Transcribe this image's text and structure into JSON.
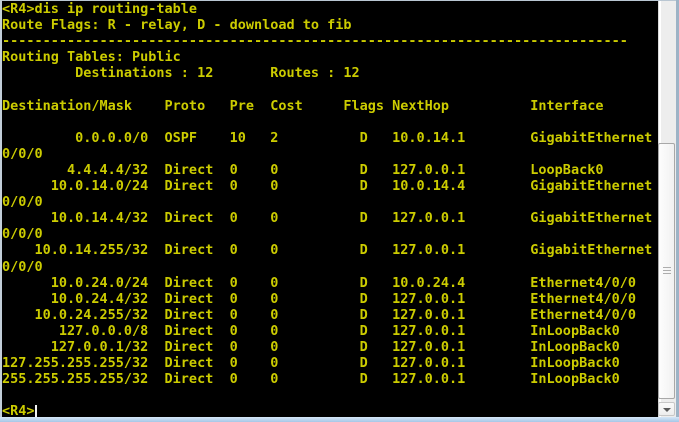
{
  "terminal": {
    "prompt_command_line": "<R4>dis ip routing-table",
    "route_flags_line": "Route Flags: R - relay, D - download to fib",
    "separator": {
      "char": "-",
      "count": 77
    },
    "routing_tables_line": "Routing Tables: Public",
    "summary": {
      "destinations_label": "Destinations",
      "destinations_count": 12,
      "routes_label": "Routes",
      "routes_count": 12
    },
    "table": {
      "columns": [
        "Destination/Mask",
        "Proto",
        "Pre",
        "Cost",
        "Flags",
        "NextHop",
        "Interface"
      ],
      "rows": [
        {
          "destination_mask": "0.0.0.0/0",
          "proto": "OSPF",
          "pre": 10,
          "cost": 2,
          "flags": "D",
          "nexthop": "10.0.14.1",
          "interface": "GigabitEthernet0/0/0"
        },
        {
          "destination_mask": "4.4.4.4/32",
          "proto": "Direct",
          "pre": 0,
          "cost": 0,
          "flags": "D",
          "nexthop": "127.0.0.1",
          "interface": "LoopBack0"
        },
        {
          "destination_mask": "10.0.14.0/24",
          "proto": "Direct",
          "pre": 0,
          "cost": 0,
          "flags": "D",
          "nexthop": "10.0.14.4",
          "interface": "GigabitEthernet0/0/0"
        },
        {
          "destination_mask": "10.0.14.4/32",
          "proto": "Direct",
          "pre": 0,
          "cost": 0,
          "flags": "D",
          "nexthop": "127.0.0.1",
          "interface": "GigabitEthernet0/0/0"
        },
        {
          "destination_mask": "10.0.14.255/32",
          "proto": "Direct",
          "pre": 0,
          "cost": 0,
          "flags": "D",
          "nexthop": "127.0.0.1",
          "interface": "GigabitEthernet0/0/0"
        },
        {
          "destination_mask": "10.0.24.0/24",
          "proto": "Direct",
          "pre": 0,
          "cost": 0,
          "flags": "D",
          "nexthop": "10.0.24.4",
          "interface": "Ethernet4/0/0"
        },
        {
          "destination_mask": "10.0.24.4/32",
          "proto": "Direct",
          "pre": 0,
          "cost": 0,
          "flags": "D",
          "nexthop": "127.0.0.1",
          "interface": "Ethernet4/0/0"
        },
        {
          "destination_mask": "10.0.24.255/32",
          "proto": "Direct",
          "pre": 0,
          "cost": 0,
          "flags": "D",
          "nexthop": "127.0.0.1",
          "interface": "Ethernet4/0/0"
        },
        {
          "destination_mask": "127.0.0.0/8",
          "proto": "Direct",
          "pre": 0,
          "cost": 0,
          "flags": "D",
          "nexthop": "127.0.0.1",
          "interface": "InLoopBack0"
        },
        {
          "destination_mask": "127.0.0.1/32",
          "proto": "Direct",
          "pre": 0,
          "cost": 0,
          "flags": "D",
          "nexthop": "127.0.0.1",
          "interface": "InLoopBack0"
        },
        {
          "destination_mask": "127.255.255.255/32",
          "proto": "Direct",
          "pre": 0,
          "cost": 0,
          "flags": "D",
          "nexthop": "127.0.0.1",
          "interface": "InLoopBack0"
        },
        {
          "destination_mask": "255.255.255.255/32",
          "proto": "Direct",
          "pre": 0,
          "cost": 0,
          "flags": "D",
          "nexthop": "127.0.0.1",
          "interface": "InLoopBack0"
        }
      ]
    },
    "final_prompt": "<R4>"
  },
  "scrollbar": {
    "down_arrow_icon": "chevron-down"
  },
  "colors": {
    "terminal_bg": "#000000",
    "terminal_text": "#cccc00",
    "cursor": "#f2f2f2",
    "frame_blue": "#a6c6e6",
    "scrollbar_track": "#ededed",
    "scrollbar_thumb": "#f7f7f7"
  }
}
